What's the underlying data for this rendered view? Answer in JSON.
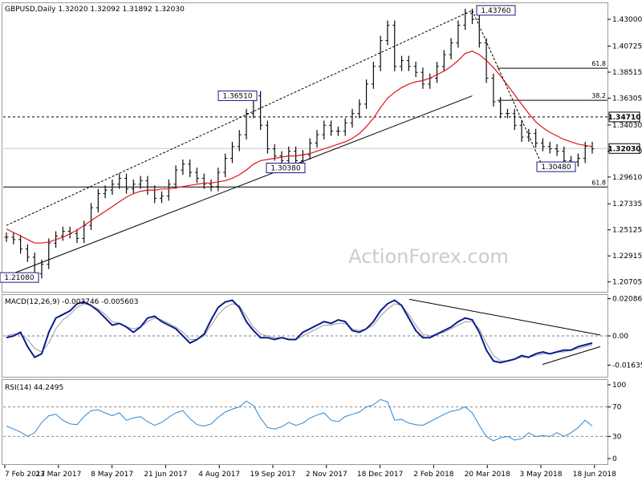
{
  "chart_data": [
    {
      "type": "ohlc",
      "panel": "price",
      "title": "GBPUSD,Daily",
      "ohlc_header": [
        "1.32020",
        "1.32092",
        "1.31892",
        "1.32030"
      ],
      "watermark": "ActionForex.com",
      "ylim": [
        1.2,
        1.443
      ],
      "y_ticks": [
        "1.43000",
        "1.40725",
        "1.38515",
        "1.36305",
        "1.34030",
        "1.31820",
        "1.29610",
        "1.27335",
        "1.25125",
        "1.22915",
        "1.20705"
      ],
      "x_ticks": [
        "7 Feb 2017",
        "23 Mar 2017",
        "8 May 2017",
        "21 Jun 2017",
        "4 Aug 2017",
        "19 Sep 2017",
        "2 Nov 2017",
        "18 Dec 2017",
        "2 Feb 2018",
        "20 Mar 2018",
        "3 May 2018",
        "18 Jun 2018"
      ],
      "close_path": [
        1.245,
        1.243,
        1.235,
        1.228,
        1.214,
        1.222,
        1.24,
        1.246,
        1.25,
        1.248,
        1.244,
        1.255,
        1.27,
        1.282,
        1.285,
        1.29,
        1.295,
        1.286,
        1.29,
        1.293,
        1.285,
        1.278,
        1.28,
        1.29,
        1.302,
        1.307,
        1.3,
        1.295,
        1.29,
        1.288,
        1.3,
        1.312,
        1.322,
        1.332,
        1.35,
        1.365,
        1.34,
        1.32,
        1.314,
        1.31,
        1.318,
        1.31,
        1.315,
        1.325,
        1.332,
        1.34,
        1.335,
        1.335,
        1.342,
        1.35,
        1.358,
        1.375,
        1.39,
        1.412,
        1.425,
        1.39,
        1.395,
        1.39,
        1.385,
        1.375,
        1.38,
        1.39,
        1.4,
        1.41,
        1.425,
        1.435,
        1.43,
        1.41,
        1.38,
        1.36,
        1.35,
        1.35,
        1.34,
        1.33,
        1.333,
        1.325,
        1.322,
        1.32,
        1.318,
        1.31,
        1.309,
        1.312,
        1.322,
        1.32
      ],
      "moving_average": [
        1.252,
        1.249,
        1.246,
        1.243,
        1.24,
        1.24,
        1.241,
        1.243,
        1.245,
        1.248,
        1.251,
        1.255,
        1.259,
        1.263,
        1.267,
        1.271,
        1.275,
        1.279,
        1.282,
        1.284,
        1.285,
        1.285,
        1.286,
        1.286,
        1.287,
        1.288,
        1.289,
        1.29,
        1.291,
        1.291,
        1.292,
        1.293,
        1.295,
        1.298,
        1.302,
        1.307,
        1.31,
        1.311,
        1.312,
        1.313,
        1.314,
        1.314,
        1.315,
        1.316,
        1.318,
        1.32,
        1.322,
        1.324,
        1.326,
        1.329,
        1.333,
        1.339,
        1.346,
        1.355,
        1.363,
        1.368,
        1.372,
        1.375,
        1.377,
        1.378,
        1.38,
        1.383,
        1.386,
        1.39,
        1.395,
        1.401,
        1.403,
        1.4,
        1.395,
        1.389,
        1.382,
        1.374,
        1.366,
        1.358,
        1.35,
        1.343,
        1.338,
        1.334,
        1.331,
        1.328,
        1.326,
        1.324,
        1.323,
        1.322
      ],
      "labels": [
        {
          "text": "1.43760",
          "x": "20 Mar 2018",
          "y": 1.4376
        },
        {
          "text": "1.36510",
          "x": "19 Sep 2017",
          "y": 1.3651
        },
        {
          "text": "1.30380",
          "x": "2 Nov 2017",
          "y": 1.3038
        },
        {
          "text": "1.30480",
          "x": "18 Jun 2018",
          "y": 1.3048
        },
        {
          "text": "1.21080",
          "x": "7 Feb 2017",
          "y": 1.2108
        }
      ],
      "fibonacci": [
        {
          "label": "61.8",
          "y": 1.3885
        },
        {
          "label": "38.2",
          "y": 1.3612
        },
        {
          "label": "61.8",
          "y": 1.2876
        }
      ],
      "horizontal_levels": [
        {
          "price": "1.34710",
          "style": "dotted",
          "label_on_axis": true
        },
        {
          "price": "1.32030",
          "style": "solid",
          "label_on_axis": true,
          "current": true
        }
      ]
    },
    {
      "type": "line",
      "panel": "macd",
      "title": "MACD(12,26,9) -0.003746 -0.005603",
      "ylim": [
        -0.022,
        0.022
      ],
      "y_ticks": [
        "0.020861",
        "0.00",
        "-0.016357"
      ],
      "macd_path": [
        -0.001,
        0,
        0.002,
        -0.006,
        -0.012,
        -0.01,
        0.002,
        0.01,
        0.012,
        0.014,
        0.018,
        0.019,
        0.017,
        0.014,
        0.01,
        0.006,
        0.007,
        0.005,
        0.002,
        0.005,
        0.01,
        0.011,
        0.008,
        0.006,
        0.004,
        0,
        -0.004,
        -0.002,
        0.001,
        0.009,
        0.016,
        0.019,
        0.02,
        0.016,
        0.008,
        0.003,
        -0.001,
        -0.001,
        -0.002,
        -0.001,
        -0.002,
        -0.002,
        0.002,
        0.004,
        0.006,
        0.008,
        0.007,
        0.009,
        0.008,
        0.003,
        0.002,
        0.004,
        0.008,
        0.014,
        0.018,
        0.02,
        0.017,
        0.01,
        0.003,
        -0.001,
        -0.001,
        0.001,
        0.003,
        0.005,
        0.008,
        0.01,
        0.009,
        0.002,
        -0.008,
        -0.014,
        -0.015,
        -0.014,
        -0.013,
        -0.011,
        -0.012,
        -0.01,
        -0.009,
        -0.01,
        -0.009,
        -0.008,
        -0.008,
        -0.006,
        -0.005,
        -0.004
      ],
      "signal_path": [
        0,
        0.001,
        0.001,
        -0.002,
        -0.007,
        -0.009,
        -0.004,
        0.004,
        0.009,
        0.012,
        0.016,
        0.018,
        0.017,
        0.015,
        0.012,
        0.008,
        0.007,
        0.005,
        0.004,
        0.005,
        0.008,
        0.01,
        0.009,
        0.007,
        0.005,
        0.002,
        -0.002,
        -0.002,
        0,
        0.006,
        0.012,
        0.016,
        0.018,
        0.017,
        0.011,
        0.005,
        0.001,
        0,
        -0.001,
        -0.001,
        -0.002,
        -0.002,
        0,
        0.002,
        0.004,
        0.006,
        0.006,
        0.007,
        0.007,
        0.004,
        0.003,
        0.004,
        0.006,
        0.011,
        0.015,
        0.018,
        0.017,
        0.012,
        0.006,
        0.001,
        0,
        0.001,
        0.002,
        0.004,
        0.006,
        0.008,
        0.008,
        0.004,
        -0.004,
        -0.011,
        -0.014,
        -0.014,
        -0.013,
        -0.012,
        -0.012,
        -0.011,
        -0.01,
        -0.01,
        -0.009,
        -0.009,
        -0.008,
        -0.007,
        -0.006,
        -0.005
      ]
    },
    {
      "type": "line",
      "panel": "rsi",
      "title": "RSI(14) 44.2495",
      "ylim": [
        0,
        100
      ],
      "y_ticks": [
        "100",
        "70",
        "30",
        "0"
      ],
      "levels": [
        70,
        30
      ],
      "rsi_path": [
        44,
        40,
        36,
        30,
        35,
        49,
        58,
        60,
        52,
        47,
        46,
        57,
        65,
        66,
        62,
        58,
        62,
        52,
        55,
        57,
        50,
        45,
        49,
        56,
        62,
        65,
        54,
        46,
        44,
        47,
        56,
        63,
        67,
        70,
        78,
        72,
        55,
        42,
        40,
        43,
        49,
        45,
        48,
        55,
        59,
        62,
        52,
        50,
        57,
        60,
        63,
        70,
        73,
        80,
        77,
        52,
        53,
        48,
        46,
        45,
        50,
        55,
        60,
        64,
        66,
        70,
        62,
        45,
        30,
        24,
        28,
        30,
        25,
        27,
        35,
        30,
        31,
        30,
        35,
        30,
        35,
        42,
        52,
        44
      ]
    }
  ]
}
